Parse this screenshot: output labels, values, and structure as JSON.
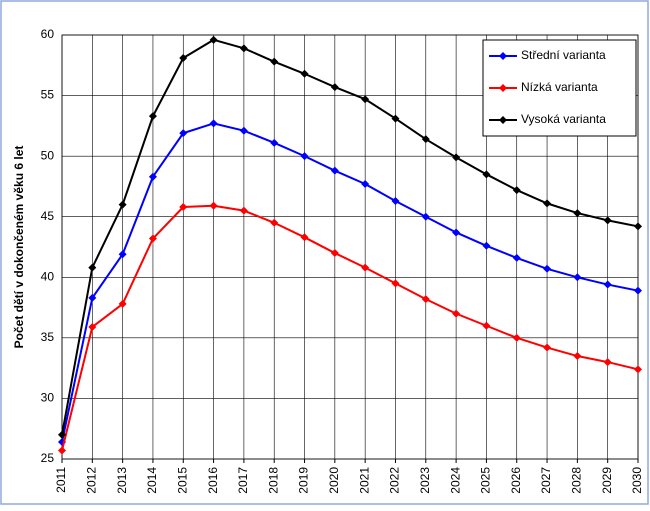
{
  "chart_data": {
    "type": "line",
    "y_label": "Počet dětí v dokončeném věku 6 let",
    "categories": [
      "2011",
      "2012",
      "2013",
      "2014",
      "2015",
      "2016",
      "2017",
      "2018",
      "2019",
      "2020",
      "2021",
      "2022",
      "2023",
      "2024",
      "2025",
      "2026",
      "2027",
      "2028",
      "2029",
      "2030"
    ],
    "series": [
      {
        "name": "Střední varianta",
        "color": "#0000ff",
        "values": [
          26.4,
          38.3,
          41.9,
          48.3,
          51.9,
          52.7,
          52.1,
          51.1,
          50.0,
          48.8,
          47.7,
          46.3,
          45.0,
          43.7,
          42.6,
          41.6,
          40.7,
          40.0,
          39.4,
          38.9
        ]
      },
      {
        "name": "Nízká varianta",
        "color": "#ff0000",
        "values": [
          25.7,
          35.9,
          37.8,
          43.2,
          45.8,
          45.9,
          45.5,
          44.5,
          43.3,
          42.0,
          40.8,
          39.5,
          38.2,
          37.0,
          36.0,
          35.0,
          34.2,
          33.5,
          33.0,
          32.4
        ]
      },
      {
        "name": "Vysoká varianta",
        "color": "#000000",
        "values": [
          27.0,
          40.8,
          46.0,
          53.3,
          58.1,
          59.6,
          58.9,
          57.8,
          56.8,
          55.7,
          54.7,
          53.1,
          51.4,
          49.9,
          48.5,
          47.2,
          46.1,
          45.3,
          44.7,
          44.2
        ]
      }
    ],
    "ylim": [
      25,
      60
    ],
    "yticks": [
      25,
      30,
      35,
      40,
      45,
      50,
      55,
      60
    ],
    "grid": true,
    "legend": "top-right"
  }
}
